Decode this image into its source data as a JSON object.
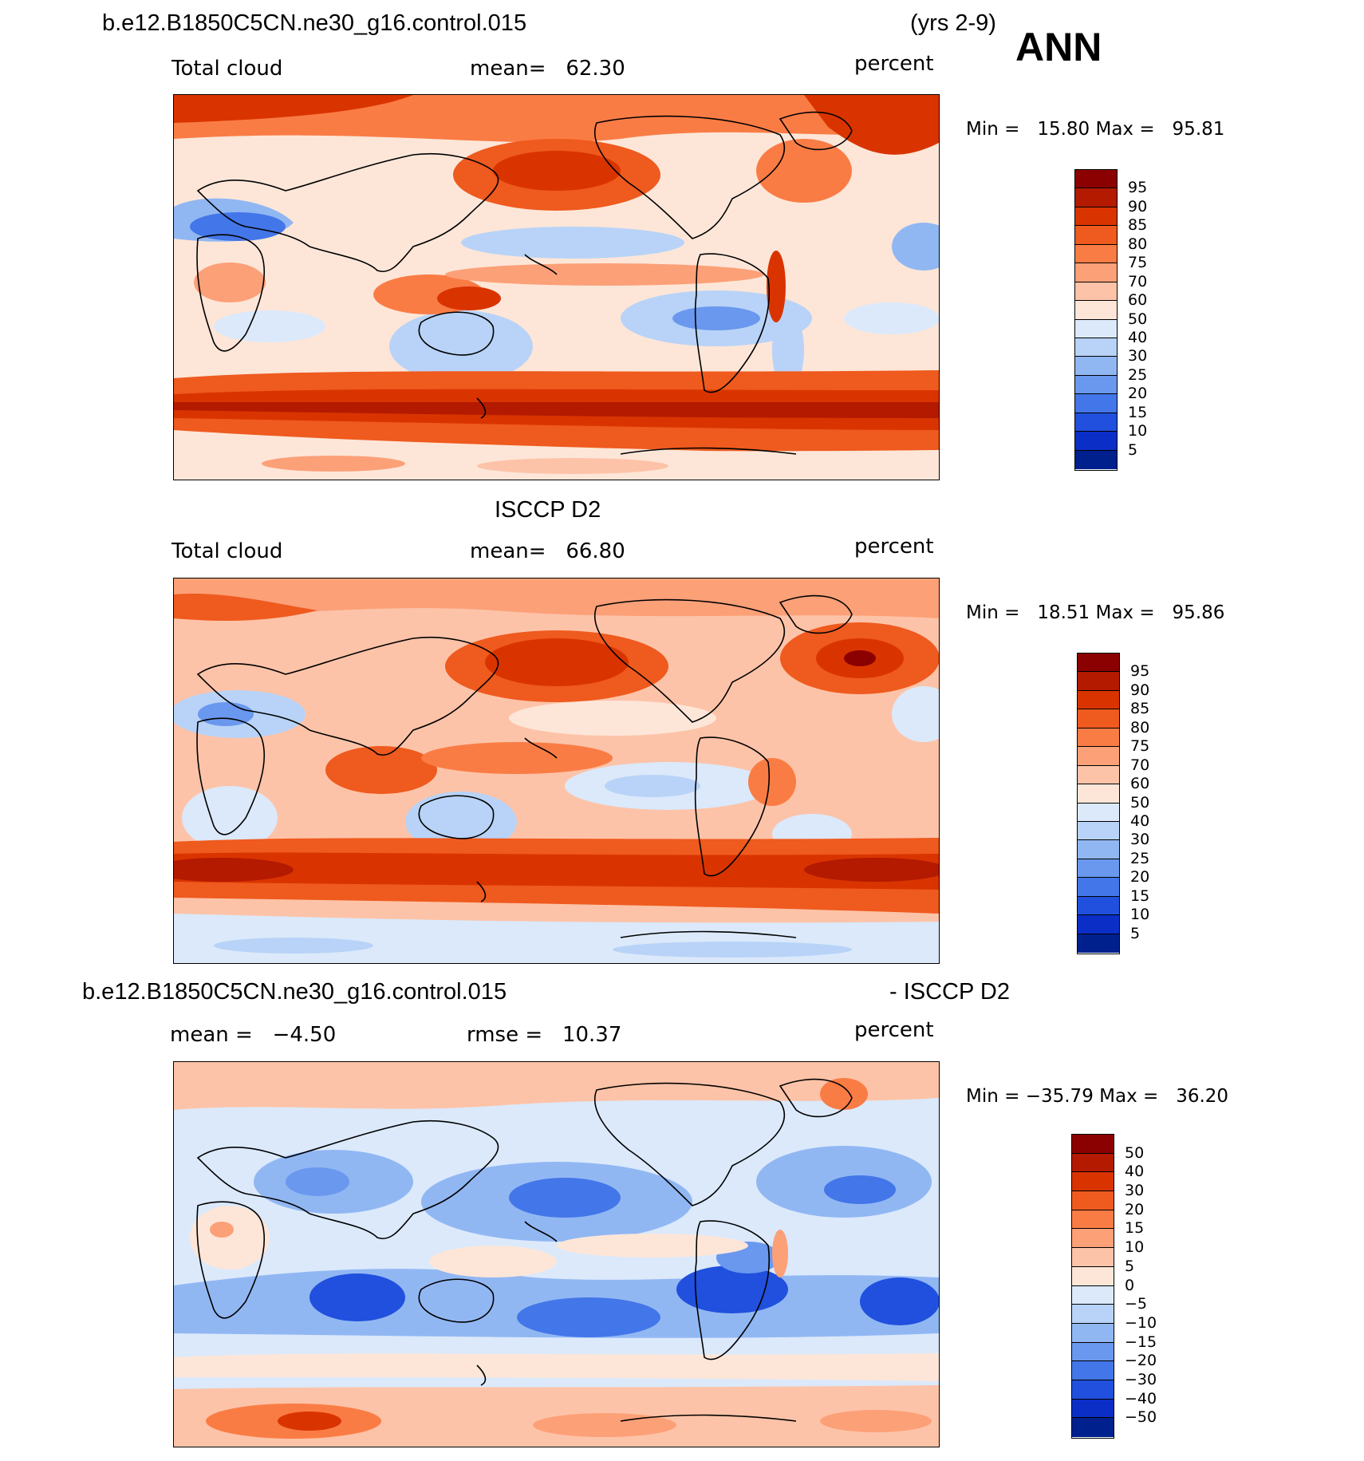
{
  "header": {
    "case_name": "b.e12.B1850C5CN.ne30_g16.control.015",
    "years": "(yrs 2-9)",
    "season": "ANN"
  },
  "panels": [
    {
      "id": "model",
      "title": "",
      "left_label": "Total cloud",
      "stat_text": "mean=   62.30",
      "units": "percent",
      "minmax_text": "Min =   15.80 Max =   95.81",
      "levels": [
        "95",
        "90",
        "85",
        "80",
        "75",
        "70",
        "60",
        "50",
        "40",
        "30",
        "25",
        "20",
        "15",
        "10",
        "5"
      ],
      "colors": [
        "#8b0000",
        "#b31a00",
        "#d93400",
        "#ef5a1e",
        "#fa7c45",
        "#fca078",
        "#fdc3a8",
        "#fde6d8",
        "#dbe9fb",
        "#b8d3f7",
        "#91b7f3",
        "#6a98ee",
        "#4376e8",
        "#2050dd",
        "#0b2ec7",
        "#00208e"
      ]
    },
    {
      "id": "obs",
      "title": "ISCCP D2",
      "left_label": "Total cloud",
      "stat_text": "mean=   66.80",
      "units": "percent",
      "minmax_text": "Min =   18.51 Max =   95.86",
      "levels": [
        "95",
        "90",
        "85",
        "80",
        "75",
        "70",
        "60",
        "50",
        "40",
        "30",
        "25",
        "20",
        "15",
        "10",
        "5"
      ],
      "colors": [
        "#8b0000",
        "#b31a00",
        "#d93400",
        "#ef5a1e",
        "#fa7c45",
        "#fca078",
        "#fdc3a8",
        "#fde6d8",
        "#dbe9fb",
        "#b8d3f7",
        "#91b7f3",
        "#6a98ee",
        "#4376e8",
        "#2050dd",
        "#0b2ec7",
        "#00208e"
      ]
    },
    {
      "id": "diff",
      "title_left": "b.e12.B1850C5CN.ne30_g16.control.015",
      "title_right": "- ISCCP D2",
      "left_label": "mean =   −4.50",
      "stat_text": "rmse =   10.37",
      "units": "percent",
      "minmax_text": "Min = −35.79 Max =   36.20",
      "levels": [
        "50",
        "40",
        "30",
        "20",
        "15",
        "10",
        "5",
        "0",
        "−5",
        "−10",
        "−15",
        "−20",
        "−30",
        "−40",
        "−50"
      ],
      "colors": [
        "#8b0000",
        "#b31a00",
        "#d93400",
        "#ef5a1e",
        "#fa7c45",
        "#fca078",
        "#fdc3a8",
        "#fde6d8",
        "#dbe9fb",
        "#b8d3f7",
        "#91b7f3",
        "#6a98ee",
        "#4376e8",
        "#2050dd",
        "#0b2ec7",
        "#00208e"
      ]
    }
  ]
}
